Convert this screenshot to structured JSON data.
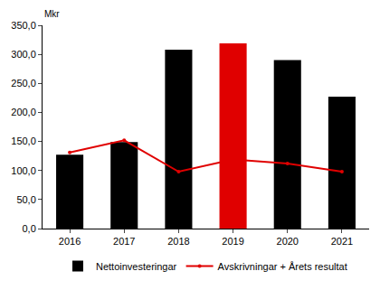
{
  "chart_data": {
    "type": "bar",
    "ylabel": "Mkr",
    "categories": [
      "2016",
      "2017",
      "2018",
      "2019",
      "2020",
      "2021"
    ],
    "series": [
      {
        "name": "Nettoinvesteringar",
        "type": "bar",
        "colors": [
          "#000000",
          "#000000",
          "#000000",
          "#e00000",
          "#000000",
          "#000000"
        ],
        "values": [
          127,
          149,
          308,
          319,
          290,
          227
        ]
      },
      {
        "name": "Avskrivningar + Årets resultat",
        "type": "line",
        "color": "#e00000",
        "marker": "circle",
        "values": [
          131,
          152,
          98,
          119,
          112,
          98
        ]
      }
    ],
    "ylim": [
      0,
      350
    ],
    "yticks": [
      {
        "value": 0,
        "label": "0,0"
      },
      {
        "value": 50,
        "label": "50,0"
      },
      {
        "value": 100,
        "label": "100,0"
      },
      {
        "value": 150,
        "label": "150,0"
      },
      {
        "value": 200,
        "label": "200,0"
      },
      {
        "value": 250,
        "label": "250,0"
      },
      {
        "value": 300,
        "label": "300,0"
      },
      {
        "value": 350,
        "label": "350,0"
      }
    ],
    "grid": false,
    "legend": "bottom"
  }
}
